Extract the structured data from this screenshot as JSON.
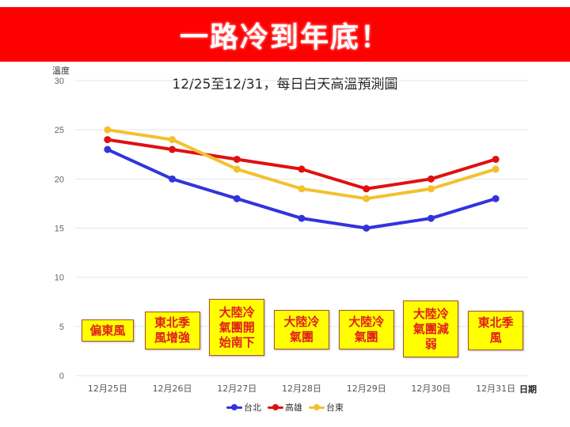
{
  "banner": {
    "title": "一路冷到年底！",
    "background": "#ff0000"
  },
  "chart_data": {
    "type": "line",
    "title": "12/25至12/31，每日白天高溫預測圖",
    "xlabel": "日期",
    "ylabel": "溫度",
    "ylim": [
      0,
      30
    ],
    "yticks": [
      0,
      5,
      10,
      15,
      20,
      25,
      30
    ],
    "grid": true,
    "legend_position": "bottom",
    "categories": [
      "12月25日",
      "12月26日",
      "12月27日",
      "12月28日",
      "12月29日",
      "12月30日",
      "12月31日"
    ],
    "series": [
      {
        "name": "台北",
        "color": "#3333dd",
        "values": [
          23,
          20,
          18,
          16,
          15,
          16,
          18
        ]
      },
      {
        "name": "高雄",
        "color": "#e01010",
        "values": [
          24,
          23,
          22,
          21,
          19,
          20,
          22
        ]
      },
      {
        "name": "台東",
        "color": "#f2c12e",
        "values": [
          25,
          24,
          21,
          19,
          18,
          19,
          21
        ]
      }
    ],
    "annotations": [
      {
        "category": "12月25日",
        "text": "偏東風"
      },
      {
        "category": "12月26日",
        "text": "東北季\n風增強"
      },
      {
        "category": "12月27日",
        "text": "大陸冷\n氣團開\n始南下"
      },
      {
        "category": "12月28日",
        "text": "大陸冷\n氣團"
      },
      {
        "category": "12月29日",
        "text": "大陸冷\n氣團"
      },
      {
        "category": "12月30日",
        "text": "大陸冷\n氣團減\n弱"
      },
      {
        "category": "12月31日",
        "text": "東北季\n風"
      }
    ]
  },
  "legend": [
    {
      "name": "台北",
      "color": "#3333dd"
    },
    {
      "name": "高雄",
      "color": "#e01010"
    },
    {
      "name": "台東",
      "color": "#f2c12e"
    }
  ]
}
